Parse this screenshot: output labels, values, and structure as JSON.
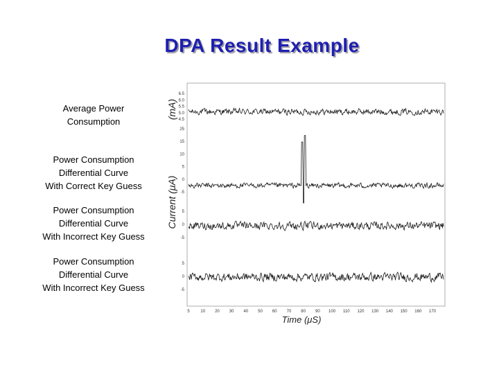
{
  "slide": {
    "title": "DPA Result Example"
  },
  "labels": [
    {
      "lines": [
        "Average Power",
        "Consumption"
      ]
    },
    {
      "lines": [
        "Power Consumption",
        "Differential Curve",
        "With Correct Key Guess"
      ]
    },
    {
      "lines": [
        "Power Consumption",
        "Differential Curve",
        "With Incorrect Key Guess"
      ]
    },
    {
      "lines": [
        "Power Consumption",
        "Differential Curve",
        "With Incorrect Key Guess"
      ]
    }
  ],
  "chart_data": {
    "type": "line",
    "xlabel": "Time (μS)",
    "ylabel_top": "(mA)",
    "ylabel_bottom": "Current (μA)",
    "xlim": [
      0,
      175
    ],
    "x_ticks": [
      "5",
      "10",
      "20",
      "30",
      "40",
      "50",
      "60",
      "70",
      "80",
      "90",
      "100",
      "110",
      "120",
      "130",
      "140",
      "150",
      "160",
      "170"
    ],
    "axes": [
      {
        "name": "avg",
        "ylim": [
          4.2,
          6.8
        ],
        "yticks": [
          "6.5",
          "6.0",
          "5.5",
          "5.0",
          "4.5"
        ],
        "center": 5.3,
        "noise": 0.25,
        "spike": null
      },
      {
        "name": "correct",
        "ylim": [
          -7,
          27
        ],
        "yticks": [
          "25",
          "15",
          "10",
          "5",
          "0",
          "-5"
        ],
        "center": 0,
        "noise": 1.6,
        "spike": {
          "x": 79,
          "values": [
            20,
            -8,
            23
          ]
        }
      },
      {
        "name": "incorrect1",
        "ylim": [
          -8,
          8
        ],
        "yticks": [
          "5",
          "0",
          "-5"
        ],
        "center": 0,
        "noise": 1.8,
        "spike": null
      },
      {
        "name": "incorrect2",
        "ylim": [
          -8,
          8
        ],
        "yticks": [
          "5",
          "0",
          "-5"
        ],
        "center": 0,
        "noise": 1.9,
        "spike": null
      }
    ],
    "grid": false
  }
}
